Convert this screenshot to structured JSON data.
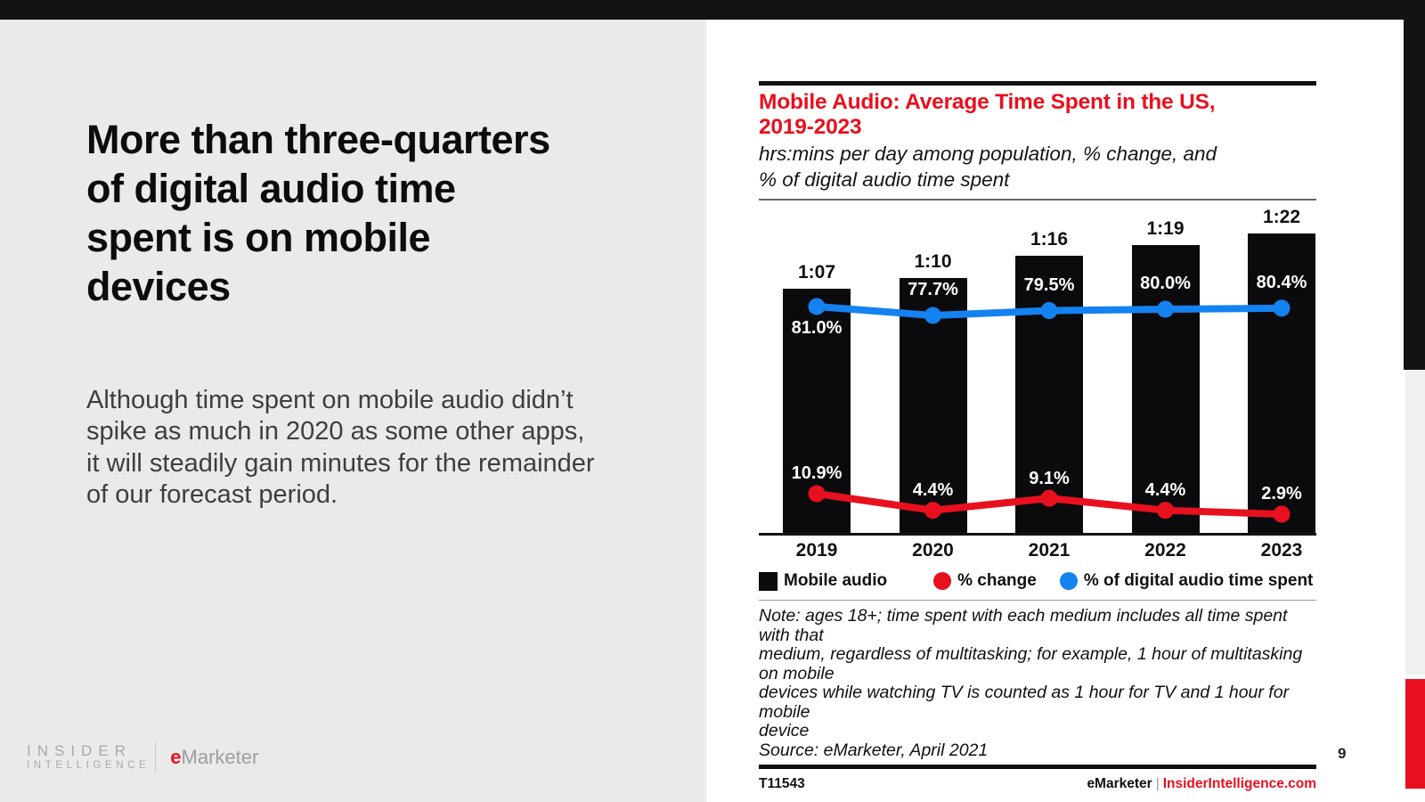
{
  "slide": {
    "headline_lines": [
      "More than three-quarters",
      "of digital audio time",
      "spent is on mobile",
      "devices"
    ],
    "body_lines": [
      "Although time spent on mobile audio didn’t",
      "spike as much in 2020 as some other apps,",
      "it will steadily gain minutes for the remainder",
      "of our forecast period."
    ],
    "page_number": "9"
  },
  "chart_header": {
    "title_lines": [
      "Mobile Audio: Average Time Spent in the US,",
      "2019-2023"
    ],
    "subtitle_lines": [
      "hrs:mins per day among population, % change, and",
      "% of digital audio time spent"
    ]
  },
  "chart_data": {
    "type": "bar",
    "categories": [
      "2019",
      "2020",
      "2021",
      "2022",
      "2023"
    ],
    "series": [
      {
        "name": "Mobile audio",
        "type": "bar",
        "unit": "hrs:mins per day",
        "labels": [
          "1:07",
          "1:10",
          "1:16",
          "1:19",
          "1:22"
        ],
        "values_minutes": [
          67,
          70,
          76,
          79,
          82
        ],
        "color": "#0b0b0d"
      },
      {
        "name": "% change",
        "type": "line",
        "labels": [
          "10.9%",
          "4.4%",
          "9.1%",
          "4.4%",
          "2.9%"
        ],
        "values": [
          10.9,
          4.4,
          9.1,
          4.4,
          2.9
        ],
        "color": "#e8101e"
      },
      {
        "name": "% of digital audio time spent",
        "type": "line",
        "labels": [
          "81.0%",
          "77.7%",
          "79.5%",
          "80.0%",
          "80.4%"
        ],
        "values": [
          81.0,
          77.7,
          79.5,
          80.0,
          80.4
        ],
        "color": "#1482f0"
      }
    ],
    "title": "Mobile Audio: Average Time Spent in the US, 2019-2023",
    "xlabel": "",
    "ylabel": "",
    "grid": false,
    "legend_position": "bottom"
  },
  "chart_footer": {
    "note_lines": [
      "Note: ages 18+; time spent with each medium includes all time spent with that",
      "medium, regardless of multitasking; for example, 1 hour of multitasking on mobile",
      "devices while watching TV is counted as 1 hour for TV and 1 hour for mobile",
      "device",
      "Source: eMarketer, April 2021"
    ],
    "chart_id": "T11543",
    "brand_left": "eMarketer",
    "brand_sep": "|",
    "brand_right": "InsiderIntelligence.com"
  },
  "logos": {
    "insider_line1": "INSIDER",
    "insider_line2": "INTELLIGENCE",
    "emarketer_e": "e",
    "emarketer_rest": "Marketer"
  },
  "colors": {
    "accent_red": "#e8101e",
    "accent_blue": "#1482f0",
    "bar_black": "#0b0b0d",
    "left_panel_gray": "#eaeaea",
    "topbar_black": "#131313"
  }
}
